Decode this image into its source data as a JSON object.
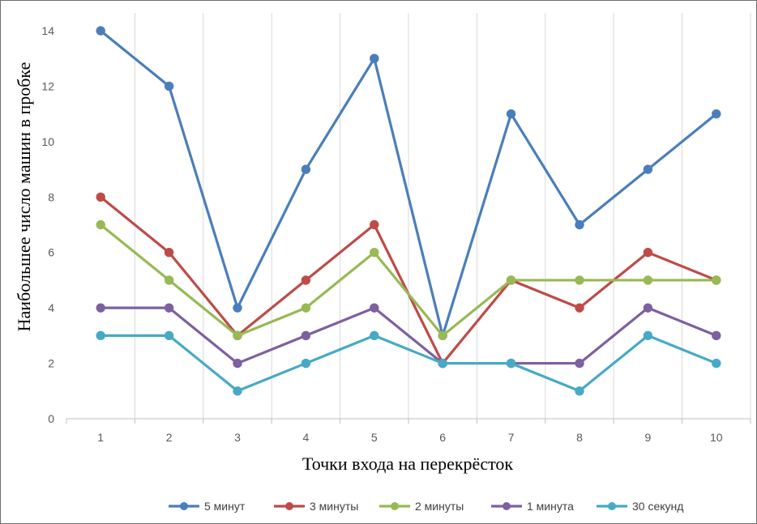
{
  "chart_data": {
    "type": "line",
    "title": "",
    "xlabel": "Точки входа на перекрёсток",
    "ylabel": "Наибольшее число машин в пробке",
    "categories": [
      "1",
      "2",
      "3",
      "4",
      "5",
      "6",
      "7",
      "8",
      "9",
      "10"
    ],
    "ylim": [
      0,
      14
    ],
    "yticks": [
      0,
      2,
      4,
      6,
      8,
      10,
      12,
      14
    ],
    "grid": "vertical",
    "legend_position": "bottom",
    "series": [
      {
        "name": "5 минут",
        "color": "#4a7ebb",
        "values": [
          14,
          12,
          4,
          9,
          13,
          3,
          11,
          7,
          9,
          11
        ]
      },
      {
        "name": "3 минуты",
        "color": "#be4b48",
        "values": [
          8,
          6,
          3,
          5,
          7,
          2,
          5,
          4,
          6,
          5
        ]
      },
      {
        "name": "2 минуты",
        "color": "#98b954",
        "values": [
          7,
          5,
          3,
          4,
          6,
          3,
          5,
          5,
          5,
          5
        ]
      },
      {
        "name": "1 минута",
        "color": "#7d60a0",
        "values": [
          4,
          4,
          2,
          3,
          4,
          2,
          2,
          2,
          4,
          3
        ]
      },
      {
        "name": "30 секунд",
        "color": "#46aac5",
        "values": [
          3,
          3,
          1,
          2,
          3,
          2,
          2,
          1,
          3,
          2
        ]
      }
    ]
  }
}
